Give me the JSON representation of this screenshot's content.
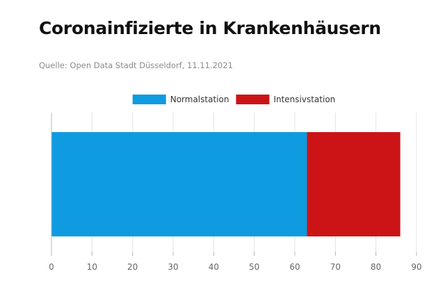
{
  "header": {
    "title": "Coronainfizierte in Krankenhäusern",
    "source": "Quelle: Open Data Stadt Düsseldorf, 11.11.2021"
  },
  "chart_data": {
    "type": "bar",
    "orientation": "horizontal",
    "stacked": true,
    "categories": [
      ""
    ],
    "series": [
      {
        "name": "Normalstation",
        "values": [
          63
        ],
        "color": "#0e9be0"
      },
      {
        "name": "Intensivstation",
        "values": [
          23
        ],
        "color": "#cc1417"
      }
    ],
    "xlim": [
      0,
      90
    ],
    "xticks": [
      0,
      10,
      20,
      30,
      40,
      50,
      60,
      70,
      80,
      90
    ],
    "grid": true,
    "legend_position": "top-center"
  }
}
